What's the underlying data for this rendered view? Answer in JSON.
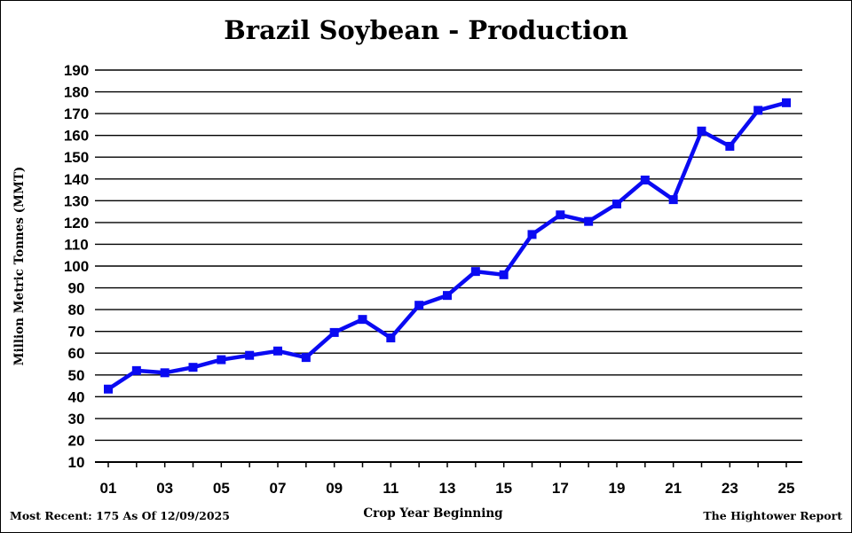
{
  "chart_data": {
    "type": "line",
    "title": "Brazil Soybean - Production",
    "xlabel": "Crop Year Beginning",
    "ylabel": "Million Metric Tonnes (MMT)",
    "ylim": [
      10,
      190
    ],
    "yticks": [
      10,
      20,
      30,
      40,
      50,
      60,
      70,
      80,
      90,
      100,
      110,
      120,
      130,
      140,
      150,
      160,
      170,
      180,
      190
    ],
    "grid": true,
    "legend": "none",
    "x": [
      "01",
      "02",
      "03",
      "04",
      "05",
      "06",
      "07",
      "08",
      "09",
      "10",
      "11",
      "12",
      "13",
      "14",
      "15",
      "16",
      "17",
      "18",
      "19",
      "20",
      "21",
      "22",
      "23",
      "24",
      "25"
    ],
    "xtick_labels": [
      "01",
      "03",
      "05",
      "07",
      "09",
      "11",
      "13",
      "15",
      "17",
      "19",
      "21",
      "23",
      "25"
    ],
    "series": [
      {
        "values": [
          43.5,
          52,
          51,
          53.5,
          57,
          59,
          61,
          58,
          69.5,
          75.5,
          67,
          82,
          86.5,
          97.5,
          96,
          114.5,
          123.5,
          120.5,
          128.5,
          139.5,
          130.5,
          162,
          155,
          171.5,
          175
        ],
        "color": "#0a0af2",
        "marker": "square"
      }
    ],
    "footnotes": {
      "left": "Most Recent:  175 As Of 12/09/2025",
      "right": "The Hightower Report"
    }
  }
}
